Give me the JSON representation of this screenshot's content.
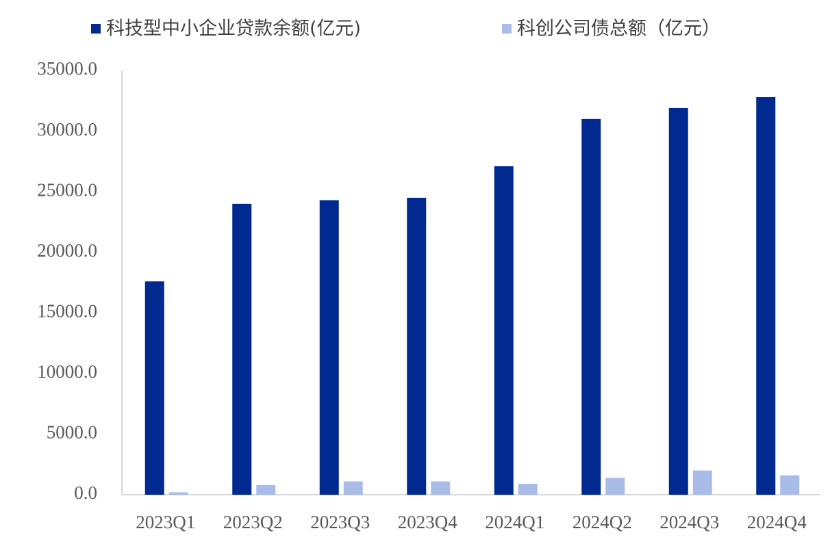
{
  "chart_data": {
    "type": "bar",
    "categories": [
      "2023Q1",
      "2023Q2",
      "2023Q3",
      "2023Q4",
      "2024Q1",
      "2024Q2",
      "2024Q3",
      "2024Q4"
    ],
    "series": [
      {
        "name": "科技型中小企业贷款余额(亿元)",
        "color": "#002a8f",
        "values": [
          17600,
          24000,
          24300,
          24500,
          27100,
          31000,
          31900,
          32800
        ]
      },
      {
        "name": "科创公司债总额（亿元）",
        "color": "#a9bce8",
        "values": [
          200,
          800,
          1100,
          1100,
          900,
          1400,
          2000,
          1600
        ]
      }
    ],
    "ylim": [
      0,
      35000
    ],
    "yticks": [
      {
        "value": 0,
        "label": "0.0"
      },
      {
        "value": 5000,
        "label": "5000.0"
      },
      {
        "value": 10000,
        "label": "10000.0"
      },
      {
        "value": 15000,
        "label": "15000.0"
      },
      {
        "value": 20000,
        "label": "20000.0"
      },
      {
        "value": 25000,
        "label": "25000.0"
      },
      {
        "value": 30000,
        "label": "30000.0"
      },
      {
        "value": 35000,
        "label": "35000.0"
      }
    ],
    "grid": false
  }
}
